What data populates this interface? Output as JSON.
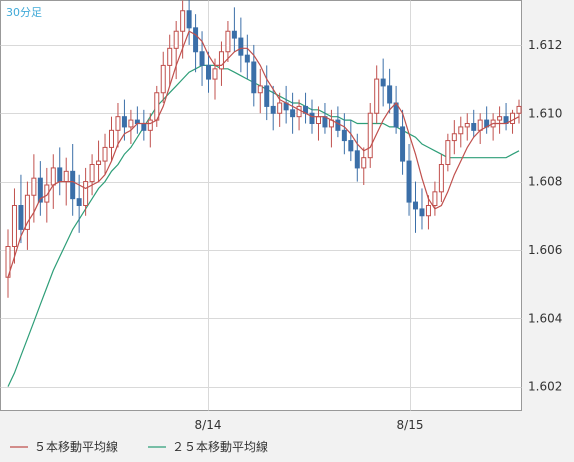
{
  "chart_data": {
    "type": "candlestick",
    "timeframe_label": "30分足",
    "x_tick_labels": [
      "8/14",
      "8/15"
    ],
    "y_ticks": [
      1.602,
      1.604,
      1.606,
      1.608,
      1.61,
      1.612
    ],
    "y_tick_labels": [
      "1.602",
      "1.604",
      "1.606",
      "1.608",
      "1.610",
      "1.612"
    ],
    "ylim": [
      1.6013,
      1.6133
    ],
    "grid": true,
    "legend_position": "bottom-left",
    "series": [
      {
        "name": "５本移動平均線",
        "color": "#c0504d"
      },
      {
        "name": "２５本移動平均線",
        "color": "#2e9e78"
      }
    ],
    "candles": [
      [
        1.6052,
        1.6066,
        1.6046,
        1.6061
      ],
      [
        1.6061,
        1.6078,
        1.6056,
        1.6073
      ],
      [
        1.6073,
        1.6082,
        1.6062,
        1.6066
      ],
      [
        1.6066,
        1.608,
        1.606,
        1.6076
      ],
      [
        1.6076,
        1.6088,
        1.6068,
        1.6081
      ],
      [
        1.6081,
        1.6086,
        1.607,
        1.6074
      ],
      [
        1.6074,
        1.6084,
        1.6068,
        1.6079
      ],
      [
        1.6079,
        1.6088,
        1.6072,
        1.6084
      ],
      [
        1.6084,
        1.609,
        1.6076,
        1.608
      ],
      [
        1.608,
        1.6087,
        1.6073,
        1.6083
      ],
      [
        1.6083,
        1.6091,
        1.607,
        1.6075
      ],
      [
        1.6075,
        1.6082,
        1.6065,
        1.6073
      ],
      [
        1.6073,
        1.6084,
        1.607,
        1.608
      ],
      [
        1.608,
        1.6088,
        1.6076,
        1.6085
      ],
      [
        1.6085,
        1.6092,
        1.608,
        1.6086
      ],
      [
        1.6086,
        1.6094,
        1.6082,
        1.609
      ],
      [
        1.609,
        1.6099,
        1.6086,
        1.6095
      ],
      [
        1.6095,
        1.6103,
        1.609,
        1.6099
      ],
      [
        1.6099,
        1.6104,
        1.6092,
        1.6096
      ],
      [
        1.6096,
        1.6101,
        1.6091,
        1.6098
      ],
      [
        1.6098,
        1.6102,
        1.6094,
        1.6097
      ],
      [
        1.6097,
        1.6101,
        1.6092,
        1.6095
      ],
      [
        1.6095,
        1.61,
        1.609,
        1.6098
      ],
      [
        1.6098,
        1.6108,
        1.6096,
        1.6106
      ],
      [
        1.6106,
        1.6118,
        1.6103,
        1.6114
      ],
      [
        1.6114,
        1.6123,
        1.6108,
        1.6119
      ],
      [
        1.6119,
        1.6127,
        1.611,
        1.6124
      ],
      [
        1.6124,
        1.6133,
        1.6116,
        1.613
      ],
      [
        1.613,
        1.6134,
        1.612,
        1.6125
      ],
      [
        1.6125,
        1.6129,
        1.6112,
        1.6118
      ],
      [
        1.6118,
        1.6124,
        1.6108,
        1.6114
      ],
      [
        1.6114,
        1.6118,
        1.6106,
        1.611
      ],
      [
        1.611,
        1.6116,
        1.6104,
        1.6113
      ],
      [
        1.6113,
        1.6121,
        1.6108,
        1.6118
      ],
      [
        1.6118,
        1.6127,
        1.6115,
        1.6124
      ],
      [
        1.6124,
        1.6131,
        1.6118,
        1.6122
      ],
      [
        1.6122,
        1.6128,
        1.6112,
        1.6117
      ],
      [
        1.6117,
        1.6123,
        1.611,
        1.6115
      ],
      [
        1.6115,
        1.612,
        1.6102,
        1.6106
      ],
      [
        1.6106,
        1.6113,
        1.61,
        1.6108
      ],
      [
        1.6108,
        1.6114,
        1.6098,
        1.6102
      ],
      [
        1.6102,
        1.6108,
        1.6095,
        1.61
      ],
      [
        1.61,
        1.6106,
        1.6096,
        1.6103
      ],
      [
        1.6103,
        1.6108,
        1.6097,
        1.6101
      ],
      [
        1.6101,
        1.6106,
        1.6094,
        1.6099
      ],
      [
        1.6099,
        1.6104,
        1.6095,
        1.6102
      ],
      [
        1.6102,
        1.6106,
        1.6097,
        1.61
      ],
      [
        1.61,
        1.6104,
        1.6094,
        1.6097
      ],
      [
        1.6097,
        1.6102,
        1.6092,
        1.6099
      ],
      [
        1.6099,
        1.6103,
        1.6094,
        1.6096
      ],
      [
        1.6096,
        1.6101,
        1.609,
        1.6098
      ],
      [
        1.6098,
        1.6102,
        1.6093,
        1.6095
      ],
      [
        1.6095,
        1.61,
        1.6088,
        1.6092
      ],
      [
        1.6092,
        1.6098,
        1.6086,
        1.6089
      ],
      [
        1.6089,
        1.6094,
        1.608,
        1.6084
      ],
      [
        1.6084,
        1.609,
        1.6079,
        1.6087
      ],
      [
        1.6087,
        1.6103,
        1.6084,
        1.61
      ],
      [
        1.61,
        1.6114,
        1.6097,
        1.611
      ],
      [
        1.611,
        1.6116,
        1.6102,
        1.6108
      ],
      [
        1.6108,
        1.6113,
        1.61,
        1.6103
      ],
      [
        1.6103,
        1.6108,
        1.6094,
        1.6096
      ],
      [
        1.6096,
        1.6101,
        1.6082,
        1.6086
      ],
      [
        1.6086,
        1.6091,
        1.607,
        1.6074
      ],
      [
        1.6074,
        1.608,
        1.6065,
        1.6072
      ],
      [
        1.6072,
        1.6078,
        1.6066,
        1.607
      ],
      [
        1.607,
        1.6076,
        1.6066,
        1.6073
      ],
      [
        1.6073,
        1.608,
        1.607,
        1.6077
      ],
      [
        1.6077,
        1.6088,
        1.6074,
        1.6085
      ],
      [
        1.6085,
        1.6094,
        1.6083,
        1.6092
      ],
      [
        1.6092,
        1.6098,
        1.6088,
        1.6094
      ],
      [
        1.6094,
        1.6099,
        1.609,
        1.6096
      ],
      [
        1.6096,
        1.61,
        1.6092,
        1.6097
      ],
      [
        1.6097,
        1.6101,
        1.6093,
        1.6095
      ],
      [
        1.6095,
        1.61,
        1.6091,
        1.6098
      ],
      [
        1.6098,
        1.6102,
        1.6094,
        1.6096
      ],
      [
        1.6096,
        1.61,
        1.6092,
        1.6098
      ],
      [
        1.6098,
        1.6102,
        1.6094,
        1.6099
      ],
      [
        1.6099,
        1.6103,
        1.6095,
        1.6097
      ],
      [
        1.6097,
        1.6101,
        1.6094,
        1.61
      ],
      [
        1.61,
        1.6104,
        1.6097,
        1.6102
      ]
    ],
    "ma5": [
      1.6052,
      1.6058,
      1.6064,
      1.6068,
      1.6071,
      1.6075,
      1.6076,
      1.6079,
      1.608,
      1.608,
      1.608,
      1.6079,
      1.6078,
      1.6079,
      1.608,
      1.6082,
      1.6086,
      1.6091,
      1.6094,
      1.6095,
      1.6097,
      1.6097,
      1.6097,
      1.6098,
      1.6102,
      1.6108,
      1.6114,
      1.6119,
      1.6124,
      1.6123,
      1.6121,
      1.6117,
      1.6114,
      1.6114,
      1.6116,
      1.6118,
      1.6119,
      1.6119,
      1.6117,
      1.6114,
      1.611,
      1.6107,
      1.6104,
      1.6103,
      1.6102,
      1.6101,
      1.61,
      1.6099,
      1.6099,
      1.6099,
      1.6098,
      1.6097,
      1.6096,
      1.6094,
      1.6091,
      1.6089,
      1.609,
      1.6094,
      1.6098,
      1.6101,
      1.6103,
      1.61,
      1.6094,
      1.6088,
      1.6081,
      1.6075,
      1.6072,
      1.6073,
      1.6077,
      1.6082,
      1.6086,
      1.609,
      1.6093,
      1.6095,
      1.6096,
      1.6097,
      1.6097,
      1.6097,
      1.6098,
      1.6099
    ],
    "ma25": [
      1.602,
      1.6024,
      1.6029,
      1.6034,
      1.6039,
      1.6044,
      1.6049,
      1.6054,
      1.6058,
      1.6062,
      1.6066,
      1.6069,
      1.6072,
      1.6075,
      1.6078,
      1.608,
      1.6083,
      1.6085,
      1.6088,
      1.609,
      1.6093,
      1.6096,
      1.6099,
      1.6102,
      1.6104,
      1.6106,
      1.6108,
      1.611,
      1.6112,
      1.6113,
      1.6114,
      1.6114,
      1.6114,
      1.6113,
      1.6113,
      1.6112,
      1.6111,
      1.611,
      1.6109,
      1.6108,
      1.6107,
      1.6106,
      1.6105,
      1.6104,
      1.6103,
      1.6103,
      1.6102,
      1.6101,
      1.6101,
      1.61,
      1.6099,
      1.6099,
      1.6098,
      1.6098,
      1.6097,
      1.6097,
      1.6097,
      1.6097,
      1.6097,
      1.6096,
      1.6096,
      1.6095,
      1.6094,
      1.6093,
      1.6091,
      1.609,
      1.6089,
      1.6088,
      1.6087,
      1.6087,
      1.6087,
      1.6087,
      1.6087,
      1.6087,
      1.6087,
      1.6087,
      1.6087,
      1.6087,
      1.6088,
      1.6089
    ]
  }
}
